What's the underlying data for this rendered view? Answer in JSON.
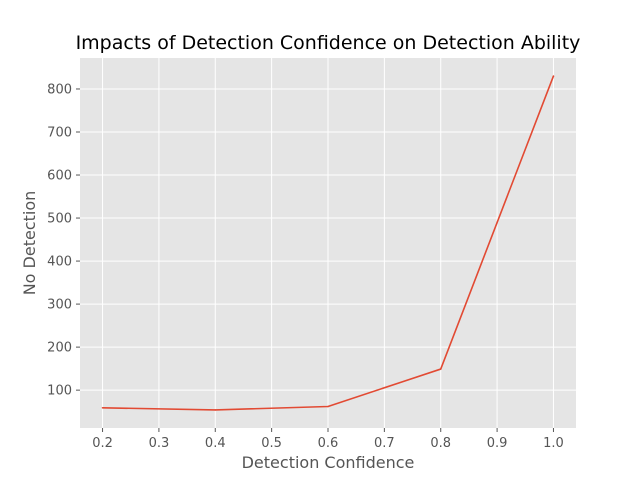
{
  "chart_data": {
    "type": "line",
    "title": "Impacts of Detection Confidence on Detection Ability",
    "xlabel": "Detection Confidence",
    "ylabel": "No Detection",
    "xlim": [
      0.16,
      1.04
    ],
    "ylim": [
      12,
      872
    ],
    "x_ticks": [
      "0.2",
      "0.3",
      "0.4",
      "0.5",
      "0.6",
      "0.7",
      "0.8",
      "0.9",
      "1.0"
    ],
    "y_ticks": [
      "100",
      "200",
      "300",
      "400",
      "500",
      "600",
      "700",
      "800"
    ],
    "grid": true,
    "series": [
      {
        "color": "#E24A33",
        "x": [
          0.2,
          0.4,
          0.6,
          0.8,
          1.0
        ],
        "y": [
          59,
          54,
          62,
          149,
          830
        ]
      }
    ],
    "colors": {
      "plot_background": "#E5E5E5",
      "grid": "#FFFFFF",
      "line": "#E24A33"
    }
  }
}
